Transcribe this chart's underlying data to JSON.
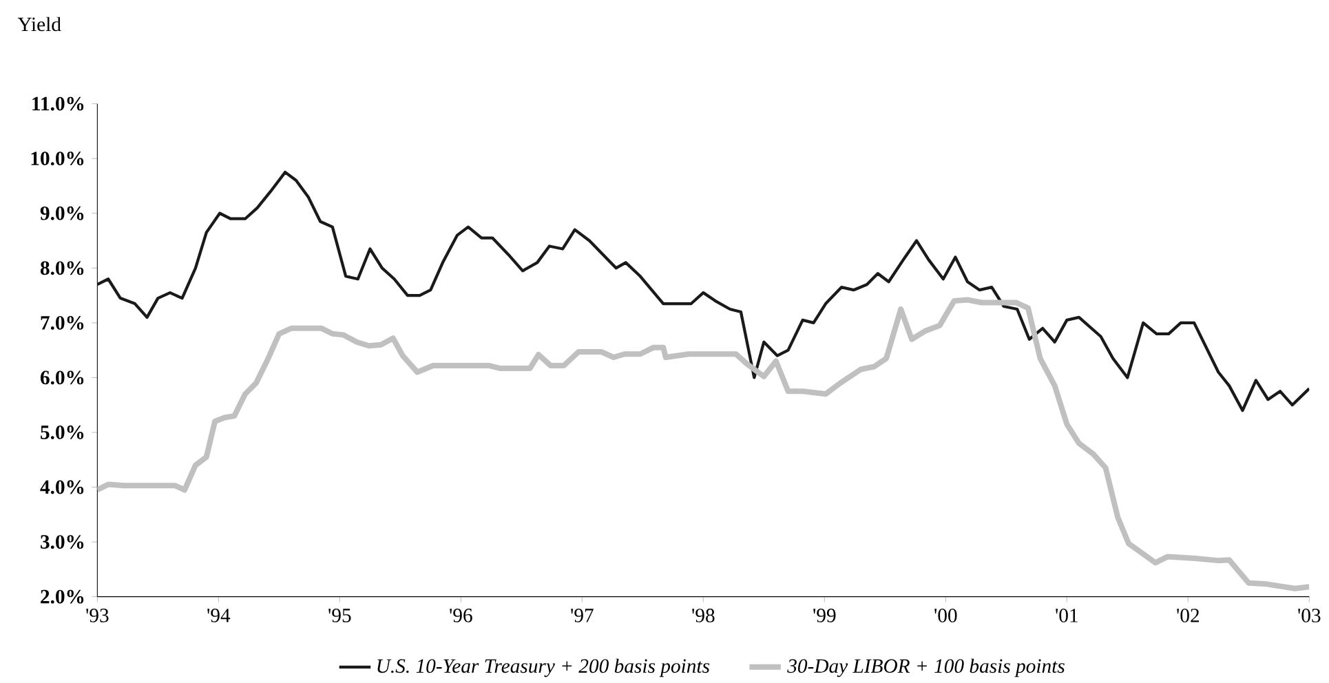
{
  "chart_data": {
    "type": "line",
    "ylabel": "Yield",
    "legend": "bottom",
    "grid": false,
    "marker": "none",
    "xlim": [
      1993,
      2003
    ],
    "ylim": [
      2,
      11
    ],
    "xticks": [
      {
        "value": 1993,
        "label": "'93"
      },
      {
        "value": 1994,
        "label": "'94"
      },
      {
        "value": 1995,
        "label": "'95"
      },
      {
        "value": 1996,
        "label": "'96"
      },
      {
        "value": 1997,
        "label": "'97"
      },
      {
        "value": 1998,
        "label": "'98"
      },
      {
        "value": 1999,
        "label": "'99"
      },
      {
        "value": 2000,
        "label": "'00"
      },
      {
        "value": 2001,
        "label": "'01"
      },
      {
        "value": 2002,
        "label": "'02"
      },
      {
        "value": 2003,
        "label": "'03"
      }
    ],
    "yticks": [
      {
        "value": 2,
        "label": "2.0%"
      },
      {
        "value": 3,
        "label": "3.0%"
      },
      {
        "value": 4,
        "label": "4.0%"
      },
      {
        "value": 5,
        "label": "5.0%"
      },
      {
        "value": 6,
        "label": "6.0%"
      },
      {
        "value": 7,
        "label": "7.0%"
      },
      {
        "value": 8,
        "label": "8.0%"
      },
      {
        "value": 9,
        "label": "9.0%"
      },
      {
        "value": 10,
        "label": "10.0%"
      },
      {
        "value": 11,
        "label": "11.0%"
      }
    ],
    "series": [
      {
        "name": "U.S. 10-Year Treasury + 200 basis points",
        "color": "#1a1a1a",
        "x": [
          1993.0,
          1993.09,
          1993.19,
          1993.31,
          1993.41,
          1993.5,
          1993.6,
          1993.7,
          1993.81,
          1993.9,
          1994.01,
          1994.1,
          1994.22,
          1994.32,
          1994.43,
          1994.55,
          1994.64,
          1994.74,
          1994.84,
          1994.94,
          1995.05,
          1995.15,
          1995.25,
          1995.35,
          1995.45,
          1995.56,
          1995.66,
          1995.75,
          1995.85,
          1995.97,
          1996.06,
          1996.17,
          1996.26,
          1996.39,
          1996.51,
          1996.63,
          1996.73,
          1996.84,
          1996.94,
          1997.06,
          1997.17,
          1997.28,
          1997.36,
          1997.48,
          1997.67,
          1997.78,
          1997.9,
          1998.0,
          1998.1,
          1998.22,
          1998.31,
          1998.42,
          1998.5,
          1998.61,
          1998.7,
          1998.82,
          1998.91,
          1999.01,
          1999.14,
          1999.24,
          1999.35,
          1999.44,
          1999.53,
          1999.65,
          1999.76,
          1999.86,
          1999.98,
          2000.08,
          2000.18,
          2000.28,
          2000.38,
          2000.48,
          2000.59,
          2000.69,
          2000.8,
          2000.9,
          2001.0,
          2001.1,
          2001.28,
          2001.38,
          2001.5,
          2001.63,
          2001.74,
          2001.84,
          2001.94,
          2002.05,
          2002.25,
          2002.34,
          2002.45,
          2002.56,
          2002.66,
          2002.76,
          2002.86,
          2003.0
        ],
        "values": [
          7.7,
          7.8,
          7.45,
          7.35,
          7.1,
          7.45,
          7.55,
          7.45,
          8.0,
          8.65,
          9.0,
          8.9,
          8.9,
          9.1,
          9.4,
          9.75,
          9.6,
          9.3,
          8.85,
          8.75,
          7.85,
          7.8,
          8.35,
          8.0,
          7.8,
          7.5,
          7.5,
          7.6,
          8.1,
          8.6,
          8.75,
          8.55,
          8.55,
          8.25,
          7.95,
          8.1,
          8.4,
          8.35,
          8.7,
          8.5,
          8.25,
          8.0,
          8.1,
          7.85,
          7.35,
          7.35,
          7.35,
          7.55,
          7.4,
          7.25,
          7.2,
          6.0,
          6.65,
          6.4,
          6.5,
          7.05,
          7.0,
          7.35,
          7.65,
          7.6,
          7.7,
          7.9,
          7.75,
          8.15,
          8.5,
          8.15,
          7.8,
          8.2,
          7.75,
          7.6,
          7.65,
          7.3,
          7.25,
          6.7,
          6.9,
          6.65,
          7.05,
          7.1,
          6.75,
          6.35,
          6.0,
          7.0,
          6.8,
          6.8,
          7.0,
          7.0,
          6.1,
          5.85,
          5.4,
          5.95,
          5.6,
          5.75,
          5.5,
          5.8
        ]
      },
      {
        "name": "30-Day LIBOR + 100 basis points",
        "color": "#c0c0c0",
        "x": [
          1993.0,
          1993.09,
          1993.22,
          1993.33,
          1993.44,
          1993.56,
          1993.64,
          1993.72,
          1993.81,
          1993.9,
          1993.97,
          1994.05,
          1994.13,
          1994.22,
          1994.31,
          1994.41,
          1994.5,
          1994.6,
          1994.74,
          1994.85,
          1994.94,
          1995.03,
          1995.14,
          1995.24,
          1995.34,
          1995.44,
          1995.52,
          1995.64,
          1995.77,
          1995.94,
          1996.23,
          1996.32,
          1996.57,
          1996.64,
          1996.74,
          1996.85,
          1996.97,
          1997.16,
          1997.26,
          1997.35,
          1997.48,
          1997.59,
          1997.67,
          1997.69,
          1997.88,
          1998.1,
          1998.27,
          1998.36,
          1998.5,
          1998.6,
          1998.7,
          1998.82,
          1999.01,
          1999.13,
          1999.3,
          1999.41,
          1999.51,
          1999.63,
          1999.72,
          1999.83,
          1999.95,
          2000.07,
          2000.18,
          2000.3,
          2000.58,
          2000.68,
          2000.78,
          2000.9,
          2001.0,
          2001.1,
          2001.22,
          2001.32,
          2001.42,
          2001.51,
          2001.73,
          2001.83,
          2002.06,
          2002.25,
          2002.34,
          2002.5,
          2002.65,
          2002.88,
          2003.0
        ],
        "values": [
          3.95,
          4.05,
          4.03,
          4.03,
          4.03,
          4.03,
          4.03,
          3.95,
          4.4,
          4.55,
          5.2,
          5.27,
          5.3,
          5.7,
          5.9,
          6.35,
          6.8,
          6.9,
          6.9,
          6.9,
          6.8,
          6.78,
          6.65,
          6.58,
          6.6,
          6.72,
          6.4,
          6.1,
          6.22,
          6.22,
          6.22,
          6.17,
          6.17,
          6.42,
          6.22,
          6.22,
          6.47,
          6.47,
          6.37,
          6.43,
          6.43,
          6.55,
          6.55,
          6.37,
          6.43,
          6.43,
          6.43,
          6.25,
          6.02,
          6.3,
          5.75,
          5.75,
          5.7,
          5.9,
          6.15,
          6.2,
          6.35,
          7.25,
          6.7,
          6.85,
          6.95,
          7.4,
          7.42,
          7.37,
          7.37,
          7.27,
          6.35,
          5.85,
          5.15,
          4.8,
          4.6,
          4.35,
          3.45,
          2.97,
          2.62,
          2.73,
          2.7,
          2.66,
          2.67,
          2.25,
          2.23,
          2.15,
          2.18
        ]
      }
    ]
  }
}
